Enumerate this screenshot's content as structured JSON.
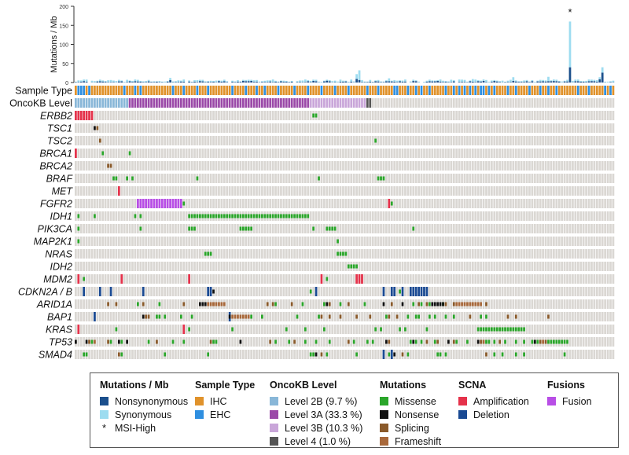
{
  "header": {
    "y_axis_label": "Mutations / Mb",
    "y_ticks": [
      "0",
      "50",
      "100",
      "150",
      "200"
    ],
    "y_max": 200,
    "msi_marker": "*"
  },
  "tracks": {
    "sample_type": "Sample Type",
    "oncokb": "OncoKB Level"
  },
  "genes": [
    "ERBB2",
    "TSC1",
    "TSC2",
    "BRCA1",
    "BRCA2",
    "BRAF",
    "MET",
    "FGFR2",
    "IDH1",
    "PIK3CA",
    "MAP2K1",
    "NRAS",
    "IDH2",
    "MDM2",
    "CDKN2A / B",
    "ARID1A",
    "BAP1",
    "KRAS",
    "TP53",
    "SMAD4"
  ],
  "colors": {
    "background_cell": "#dad7d3",
    "nonsynonymous": "#1b4f8c",
    "synonymous": "#9ddcf0",
    "ihc": "#e0922b",
    "ehc": "#2f8fe0",
    "level2b": "#89b7d8",
    "level3a": "#9b4aa8",
    "level3b": "#c9a6d9",
    "level4": "#555555",
    "missense": "#2aa62a",
    "nonsense": "#111111",
    "splicing": "#8a5a2a",
    "frameshift": "#a8683a",
    "amplification": "#e5324b",
    "deletion": "#1a4a93",
    "fusion": "#b84ee6"
  },
  "legend": {
    "mutations_mb": {
      "title": "Mutations / Mb",
      "items": [
        "Nonsynonymous",
        "Synonymous",
        "MSI-High"
      ]
    },
    "sample_type": {
      "title": "Sample Type",
      "items": [
        "IHC",
        "EHC"
      ]
    },
    "oncokb": {
      "title": "OncoKB Level",
      "items": [
        "Level 2B (9.7 %)",
        "Level 3A (33.3 %)",
        "Level 3B (10.3 %)",
        "Level 4 (1.0 %)"
      ]
    },
    "mutations": {
      "title": "Mutations",
      "items": [
        "Missense",
        "Nonsense",
        "Splicing",
        "Frameshift"
      ]
    },
    "scna": {
      "title": "SCNA",
      "items": [
        "Amplification",
        "Deletion"
      ]
    },
    "fusions": {
      "title": "Fusions",
      "items": [
        "Fusion"
      ]
    }
  }
}
